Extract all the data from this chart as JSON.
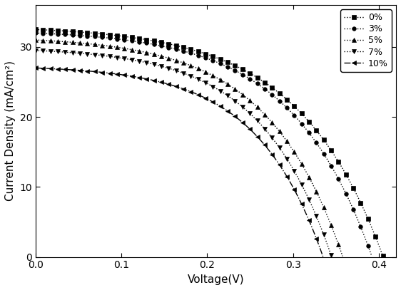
{
  "title": "",
  "xlabel": "Voltage(V)",
  "ylabel": "Current Density (mA/cm²)",
  "xlim": [
    0.0,
    0.42
  ],
  "ylim": [
    0,
    36
  ],
  "xticks": [
    0.0,
    0.1,
    0.2,
    0.3,
    0.4
  ],
  "yticks": [
    0,
    10,
    20,
    30
  ],
  "series": [
    {
      "label": "0%",
      "Jsc": 32.5,
      "Voc": 0.405,
      "n": 3.8,
      "marker": "s",
      "ls": ":",
      "color": "black"
    },
    {
      "label": "3%",
      "Jsc": 32.0,
      "Voc": 0.392,
      "n": 3.6,
      "marker": "o",
      "ls": ":",
      "color": "black"
    },
    {
      "label": "5%",
      "Jsc": 31.0,
      "Voc": 0.358,
      "n": 3.4,
      "marker": "^",
      "ls": ":",
      "color": "black"
    },
    {
      "label": "7%",
      "Jsc": 29.5,
      "Voc": 0.345,
      "n": 3.2,
      "marker": "v",
      "ls": ":",
      "color": "black"
    },
    {
      "label": "10%",
      "Jsc": 27.0,
      "Voc": 0.335,
      "n": 3.0,
      "marker": "<",
      "ls": "-.",
      "color": "black"
    }
  ],
  "background_color": "#ffffff",
  "legend_fontsize": 9,
  "axis_fontsize": 11,
  "tick_fontsize": 10,
  "marker_size": 4,
  "linewidth": 1.0
}
